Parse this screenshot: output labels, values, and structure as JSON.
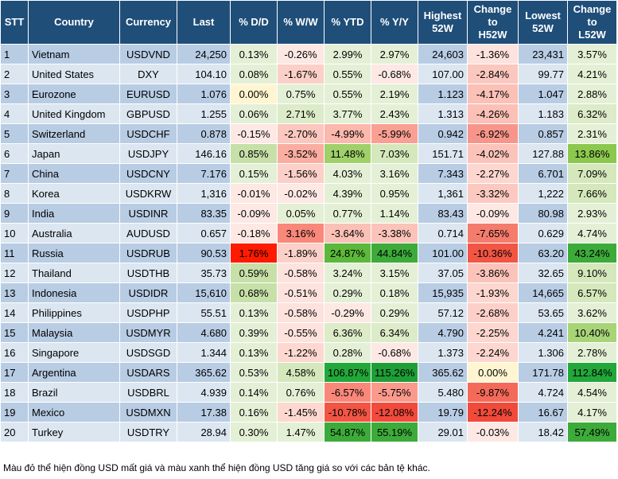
{
  "headers": [
    "STT",
    "Country",
    "Currency",
    "Last",
    "% D/D",
    "% W/W",
    "% YTD",
    "% Y/Y",
    "Highest\n52W",
    "Change\nto\nH52W",
    "Lowest\n52W",
    "Change\nto\nL52W"
  ],
  "rows": [
    [
      "1",
      "Vietnam",
      "USDVND",
      "24,250",
      "0.13%",
      "-0.26%",
      "2.99%",
      "2.97%",
      "24,603",
      "-1.36%",
      "23,431",
      "3.57%"
    ],
    [
      "2",
      "United States",
      "DXY",
      "104.10",
      "0.08%",
      "-1.67%",
      "0.55%",
      "-0.68%",
      "107.00",
      "-2.84%",
      "99.77",
      "4.21%"
    ],
    [
      "3",
      "Eurozone",
      "EURUSD",
      "1.076",
      "0.00%",
      "0.75%",
      "0.55%",
      "2.19%",
      "1.123",
      "-4.17%",
      "1.047",
      "2.88%"
    ],
    [
      "4",
      "United Kingdom",
      "GBPUSD",
      "1.255",
      "0.06%",
      "2.71%",
      "3.77%",
      "2.43%",
      "1.313",
      "-4.26%",
      "1.183",
      "6.32%"
    ],
    [
      "5",
      "Switzerland",
      "USDCHF",
      "0.878",
      "-0.15%",
      "-2.70%",
      "-4.99%",
      "-5.99%",
      "0.942",
      "-6.92%",
      "0.857",
      "2.31%"
    ],
    [
      "6",
      "Japan",
      "USDJPY",
      "146.16",
      "0.85%",
      "-3.52%",
      "11.48%",
      "7.03%",
      "151.71",
      "-4.02%",
      "127.88",
      "13.86%"
    ],
    [
      "7",
      "China",
      "USDCNY",
      "7.176",
      "0.15%",
      "-1.56%",
      "4.03%",
      "3.16%",
      "7.343",
      "-2.27%",
      "6.701",
      "7.09%"
    ],
    [
      "8",
      "Korea",
      "USDKRW",
      "1,316",
      "-0.01%",
      "-0.02%",
      "4.39%",
      "0.95%",
      "1,361",
      "-3.32%",
      "1,222",
      "7.66%"
    ],
    [
      "9",
      "India",
      "USDINR",
      "83.35",
      "-0.09%",
      "0.05%",
      "0.77%",
      "1.14%",
      "83.43",
      "-0.09%",
      "80.98",
      "2.93%"
    ],
    [
      "10",
      "Australia",
      "AUDUSD",
      "0.657",
      "-0.18%",
      "3.16%",
      "-3.64%",
      "-3.38%",
      "0.714",
      "-7.65%",
      "0.629",
      "4.74%"
    ],
    [
      "11",
      "Russia",
      "USDRUB",
      "90.53",
      "1.76%",
      "-1.89%",
      "24.87%",
      "44.84%",
      "101.00",
      "-10.36%",
      "63.20",
      "43.24%"
    ],
    [
      "12",
      "Thailand",
      "USDTHB",
      "35.73",
      "0.59%",
      "-0.58%",
      "3.24%",
      "3.15%",
      "37.05",
      "-3.86%",
      "32.65",
      "9.10%"
    ],
    [
      "13",
      "Indonesia",
      "USDIDR",
      "15,610",
      "0.68%",
      "-0.51%",
      "0.29%",
      "0.18%",
      "15,935",
      "-1.93%",
      "14,665",
      "6.57%"
    ],
    [
      "14",
      "Philippines",
      "USDPHP",
      "55.51",
      "0.13%",
      "-0.58%",
      "-0.29%",
      "0.29%",
      "57.12",
      "-2.68%",
      "53.65",
      "3.62%"
    ],
    [
      "15",
      "Malaysia",
      "USDMYR",
      "4.680",
      "0.39%",
      "-0.55%",
      "6.36%",
      "6.34%",
      "4.790",
      "-2.25%",
      "4.241",
      "10.40%"
    ],
    [
      "16",
      "Singapore",
      "USDSGD",
      "1.344",
      "0.13%",
      "-1.22%",
      "0.28%",
      "-0.68%",
      "1.373",
      "-2.24%",
      "1.306",
      "2.78%"
    ],
    [
      "17",
      "Argentina",
      "USDARS",
      "365.62",
      "0.53%",
      "4.58%",
      "106.87%",
      "115.26%",
      "365.62",
      "0.00%",
      "171.78",
      "112.84%"
    ],
    [
      "18",
      "Brazil",
      "USDBRL",
      "4.939",
      "0.14%",
      "0.76%",
      "-6.57%",
      "-5.75%",
      "5.480",
      "-9.87%",
      "4.724",
      "4.54%"
    ],
    [
      "19",
      "Mexico",
      "USDMXN",
      "17.38",
      "0.16%",
      "-1.45%",
      "-10.78%",
      "-12.08%",
      "19.79",
      "-12.24%",
      "16.67",
      "4.17%"
    ],
    [
      "20",
      "Turkey",
      "USDTRY",
      "28.94",
      "0.30%",
      "1.47%",
      "54.87%",
      "55.19%",
      "29.01",
      "-0.03%",
      "18.42",
      "57.49%"
    ]
  ],
  "cell_colors": [
    [
      null,
      null,
      null,
      null,
      "#e4f0d6",
      "#fde8e4",
      "#e4f0d6",
      "#e4f0d6",
      null,
      "#fde2dd",
      null,
      "#e4f0d6"
    ],
    [
      null,
      null,
      null,
      null,
      "#e4f0d6",
      "#fbd0c8",
      "#e4f0d6",
      "#fde8e4",
      null,
      "#fbc7be",
      null,
      "#e4f0d6"
    ],
    [
      null,
      null,
      null,
      null,
      "#fff5d0",
      "#e4f0d6",
      "#e4f0d6",
      "#e4f0d6",
      null,
      "#fbc0b6",
      null,
      "#e4f0d6"
    ],
    [
      null,
      null,
      null,
      null,
      "#e4f0d6",
      "#dcebc8",
      "#e4f0d6",
      "#e4f0d6",
      null,
      "#fbc0b6",
      null,
      "#dcebc8"
    ],
    [
      null,
      null,
      null,
      null,
      "#fde8e4",
      "#fbc7be",
      "#fbb8ac",
      "#f9a093",
      null,
      "#f7958a",
      null,
      "#e4f0d6"
    ],
    [
      null,
      null,
      null,
      null,
      "#c6e0a8",
      "#faada0",
      "#9fd06a",
      "#d4e8bc",
      null,
      "#fbc3ba",
      null,
      "#8cc84e"
    ],
    [
      null,
      null,
      null,
      null,
      "#e4f0d6",
      "#fbd0c8",
      "#e4f0d6",
      "#e4f0d6",
      null,
      "#fcd6cf",
      null,
      "#d4e8bc"
    ],
    [
      null,
      null,
      null,
      null,
      "#fde8e4",
      "#fde8e4",
      "#e4f0d6",
      "#e4f0d6",
      null,
      "#fbc9c0",
      null,
      "#d4e8bc"
    ],
    [
      null,
      null,
      null,
      null,
      "#fde8e4",
      "#e4f0d6",
      "#e4f0d6",
      "#e4f0d6",
      null,
      "#fde8e4",
      null,
      "#e4f0d6"
    ],
    [
      null,
      null,
      null,
      null,
      "#fde8e4",
      "#f9887a",
      "#fbc0b6",
      "#fbc3ba",
      null,
      "#f47c6c",
      null,
      "#e4f0d6"
    ],
    [
      null,
      null,
      null,
      null,
      "#ff1a00",
      "#fbd0c8",
      "#5cb83a",
      "#3cab3a",
      null,
      "#f25544",
      null,
      "#3cab3a"
    ],
    [
      null,
      null,
      null,
      null,
      "#c6e0a8",
      "#fde2dd",
      "#e4f0d6",
      "#e4f0d6",
      null,
      "#fbc3ba",
      null,
      "#d4e8bc"
    ],
    [
      null,
      null,
      null,
      null,
      "#c6e0a8",
      "#fde2dd",
      "#e4f0d6",
      "#e4f0d6",
      null,
      "#fcd6cf",
      null,
      "#d4e8bc"
    ],
    [
      null,
      null,
      null,
      null,
      "#e4f0d6",
      "#fde2dd",
      "#fde8e4",
      "#e4f0d6",
      null,
      "#fcd0c8",
      null,
      "#e4f0d6"
    ],
    [
      null,
      null,
      null,
      null,
      "#e4f0d6",
      "#fde2dd",
      "#dcebc8",
      "#dcebc8",
      null,
      "#fcd6cf",
      null,
      "#a8d478"
    ],
    [
      null,
      null,
      null,
      null,
      "#e4f0d6",
      "#fdd8d0",
      "#e4f0d6",
      "#fde8e4",
      null,
      "#fcd6cf",
      null,
      "#e4f0d6"
    ],
    [
      null,
      null,
      null,
      null,
      "#e4f0d6",
      "#d4e8bc",
      "#22a83a",
      "#1f9e38",
      null,
      "#fff5d0",
      null,
      "#22a83a"
    ],
    [
      null,
      null,
      null,
      null,
      "#e4f0d6",
      "#e4f0d6",
      "#f9887a",
      "#f99a8c",
      null,
      "#f36a5a",
      null,
      "#e4f0d6"
    ],
    [
      null,
      null,
      null,
      null,
      "#e4f0d6",
      "#fdd8d0",
      "#f25544",
      "#f24a3c",
      null,
      "#f14a3a",
      null,
      "#e4f0d6"
    ],
    [
      null,
      null,
      null,
      null,
      "#e4f0d6",
      "#e4f0d6",
      "#3cab3a",
      "#3cab3a",
      null,
      "#fde8e4",
      null,
      "#3cab3a"
    ]
  ],
  "footnote": "Màu đỏ thể hiện đồng USD mất giá và màu xanh thể hiện đồng USD tăng giá so với các bản tệ khác."
}
